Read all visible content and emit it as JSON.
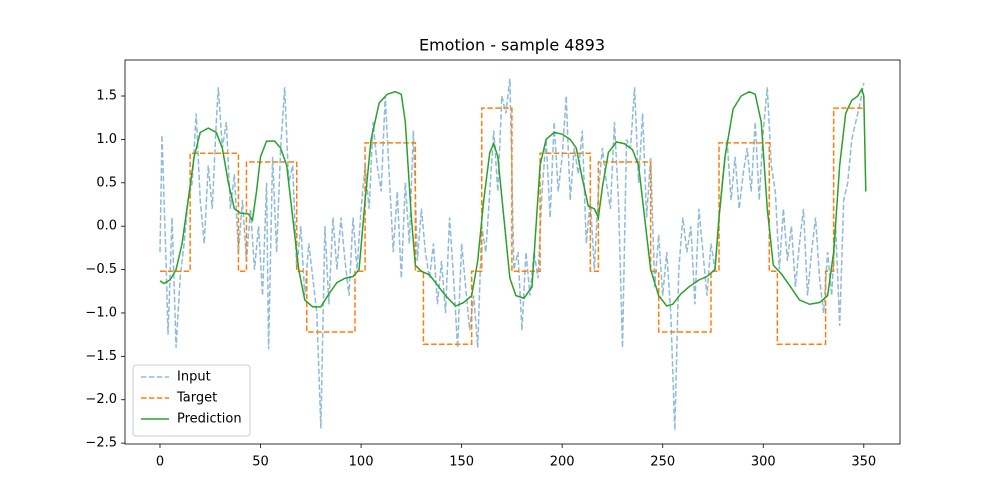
{
  "chart_data": {
    "type": "line",
    "title": "Emotion - sample 4893",
    "xlim": [
      -17.4,
      368
    ],
    "ylim": [
      -2.51,
      1.915
    ],
    "xticks": [
      0,
      50,
      100,
      150,
      200,
      250,
      300,
      350
    ],
    "yticks": [
      {
        "value": -2.5,
        "label": "−2.5"
      },
      {
        "value": -2.0,
        "label": "−2.0"
      },
      {
        "value": -1.5,
        "label": "−1.5"
      },
      {
        "value": -1.0,
        "label": "−1.0"
      },
      {
        "value": -0.5,
        "label": "−0.5"
      },
      {
        "value": 0,
        "label": "0.0"
      },
      0.5,
      {
        "value": 1.0,
        "label": "1.0"
      },
      1.5
    ],
    "legend": "lower left",
    "series": [
      {
        "name": "Input",
        "color": "#1f77b4",
        "alpha": 0.5,
        "linestyle": "dashed",
        "x": [
          0,
          1,
          3,
          4,
          6,
          8,
          10,
          12,
          14,
          16,
          18,
          20,
          22,
          24,
          26,
          28,
          29,
          31,
          33,
          35,
          37,
          39,
          41,
          43,
          45,
          47,
          49,
          51,
          53,
          54,
          56,
          58,
          60,
          62,
          64,
          66,
          68,
          70,
          72,
          74,
          76,
          78,
          80,
          82,
          84,
          86,
          88,
          90,
          92,
          94,
          96,
          98,
          100,
          102,
          104,
          106,
          108,
          110,
          112,
          114,
          116,
          118,
          120,
          122,
          124,
          126,
          128,
          130,
          132,
          134,
          136,
          138,
          140,
          142,
          144,
          146,
          148,
          150,
          152,
          154,
          156,
          158,
          160,
          162,
          164,
          166,
          168,
          170,
          172,
          174,
          176,
          178,
          180,
          182,
          184,
          186,
          188,
          190,
          192,
          194,
          196,
          198,
          200,
          202,
          204,
          206,
          208,
          210,
          212,
          214,
          216,
          218,
          220,
          222,
          224,
          226,
          228,
          230,
          232,
          234,
          236,
          238,
          240,
          242,
          244,
          246,
          248,
          250,
          252,
          254,
          256,
          258,
          260,
          262,
          264,
          266,
          268,
          270,
          272,
          274,
          276,
          278,
          280,
          282,
          284,
          286,
          288,
          290,
          292,
          294,
          296,
          298,
          300,
          302,
          304,
          306,
          308,
          310,
          312,
          314,
          316,
          318,
          320,
          322,
          324,
          326,
          328,
          330,
          332,
          334,
          336,
          338,
          340,
          342,
          344,
          346,
          348,
          350
        ],
        "values": [
          -0.3,
          1.05,
          -0.4,
          -1.25,
          0.1,
          -1.4,
          -0.6,
          -0.2,
          0.3,
          0.5,
          1.3,
          0.3,
          -0.2,
          0.7,
          0.2,
          1.2,
          1.6,
          0.9,
          1.2,
          0.2,
          0.6,
          -0.3,
          0.3,
          -0.4,
          0.2,
          -0.5,
          0.0,
          -0.8,
          0.5,
          -1.42,
          0.8,
          -0.3,
          0.9,
          1.6,
          0.5,
          0.7,
          -0.5,
          0.0,
          -0.8,
          -0.2,
          -0.6,
          -1.0,
          -2.33,
          0.0,
          -0.9,
          0.1,
          -0.5,
          0.1,
          -0.4,
          -0.8,
          0.1,
          -0.5,
          0.2,
          0.7,
          0.2,
          1.2,
          0.7,
          0.4,
          1.5,
          0.6,
          -0.3,
          0.4,
          -0.6,
          0.5,
          -0.2,
          1.1,
          -0.4,
          0.2,
          -0.3,
          -0.6,
          -0.2,
          -0.9,
          -0.4,
          -1.0,
          0.1,
          -0.6,
          -1.4,
          -0.2,
          -0.7,
          -1.2,
          -0.8,
          -1.4,
          0.0,
          -0.3,
          0.4,
          1.1,
          0.4,
          1.5,
          1.3,
          1.7,
          -0.5,
          -0.3,
          -1.2,
          -0.3,
          -0.8,
          -0.3,
          -0.6,
          0.4,
          1.0,
          0.1,
          1.2,
          0.4,
          0.8,
          1.5,
          0.3,
          0.9,
          0.6,
          1.1,
          -0.2,
          0.3,
          -0.5,
          0.4,
          0.9,
          0.5,
          0.2,
          1.2,
          0.3,
          -1.4,
          1.0,
          0.9,
          1.6,
          0.5,
          1.3,
          0.1,
          0.8,
          -0.7,
          -0.1,
          -0.8,
          -0.3,
          -1.0,
          -2.35,
          -0.5,
          0.1,
          -0.3,
          0.0,
          -0.9,
          0.2,
          -0.3,
          -0.8,
          -0.2,
          -0.5,
          0.1,
          0.6,
          1.0,
          0.3,
          0.8,
          0.2,
          0.6,
          0.9,
          0.4,
          1.2,
          0.3,
          1.1,
          1.6,
          0.7,
          0.4,
          -0.5,
          0.2,
          -0.4,
          0.0,
          -0.7,
          -0.2,
          0.2,
          -0.8,
          -0.3,
          0.1,
          -0.6,
          -1.0,
          -0.3,
          -0.8,
          0.0,
          -1.15,
          0.3,
          0.5,
          1.0,
          1.2,
          1.4,
          1.65
        ]
      },
      {
        "name": "Target",
        "color": "#ff7f0e",
        "alpha": 1,
        "linestyle": "dashed",
        "x": [
          0,
          15,
          15,
          39,
          39,
          43,
          43,
          68,
          68,
          73,
          73,
          97,
          97,
          102,
          102,
          127,
          127,
          131,
          131,
          155,
          155,
          160,
          160,
          175,
          175,
          189,
          189,
          214,
          214,
          218,
          218,
          244,
          244,
          248,
          248,
          274,
          274,
          278,
          278,
          303,
          303,
          307,
          307,
          331,
          331,
          335,
          335,
          350
        ],
        "values": [
          -0.52,
          -0.52,
          0.84,
          0.84,
          -0.52,
          -0.52,
          0.74,
          0.74,
          -0.52,
          -0.52,
          -1.22,
          -1.22,
          -0.52,
          -0.52,
          0.96,
          0.96,
          -0.52,
          -0.52,
          -1.36,
          -1.36,
          -0.52,
          -0.52,
          1.36,
          1.36,
          -0.52,
          -0.52,
          0.84,
          0.84,
          -0.52,
          -0.52,
          0.74,
          0.74,
          -0.52,
          -0.52,
          -1.22,
          -1.22,
          -0.52,
          -0.52,
          0.96,
          0.96,
          -0.52,
          -0.52,
          -1.36,
          -1.36,
          -0.52,
          -0.52,
          1.36,
          1.36
        ]
      },
      {
        "name": "Prediction",
        "color": "#2ca02c",
        "alpha": 1,
        "linestyle": "solid",
        "x": [
          0,
          2,
          5,
          8,
          11,
          14,
          17,
          20,
          24,
          28,
          31,
          34,
          37,
          40,
          44,
          46,
          48,
          50,
          53,
          57,
          60,
          63,
          66,
          69,
          72,
          76,
          80,
          84,
          88,
          92,
          96,
          99,
          102,
          105,
          109,
          113,
          117,
          120,
          122,
          125,
          127,
          130,
          134,
          138,
          142,
          147,
          151,
          155,
          158,
          161,
          164,
          166,
          168,
          171,
          174,
          177,
          181,
          185,
          187,
          189,
          192,
          196,
          200,
          204,
          207,
          210,
          213,
          216,
          218,
          220,
          223,
          227,
          231,
          235,
          238,
          241,
          244,
          248,
          252,
          255,
          259,
          263,
          268,
          272,
          276,
          278,
          281,
          285,
          289,
          293,
          296,
          299,
          302,
          305,
          309,
          313,
          318,
          323,
          328,
          332,
          335,
          338,
          341,
          344,
          347,
          349,
          350,
          351
        ],
        "values": [
          -0.63,
          -0.66,
          -0.62,
          -0.5,
          -0.2,
          0.3,
          0.8,
          1.08,
          1.13,
          1.08,
          0.9,
          0.5,
          0.2,
          0.15,
          0.14,
          0.07,
          0.4,
          0.8,
          0.98,
          0.98,
          0.9,
          0.7,
          0.1,
          -0.5,
          -0.85,
          -0.93,
          -0.93,
          -0.78,
          -0.65,
          -0.6,
          -0.58,
          -0.5,
          0.3,
          1.0,
          1.42,
          1.52,
          1.55,
          1.52,
          1.2,
          0.1,
          -0.45,
          -0.52,
          -0.56,
          -0.68,
          -0.8,
          -0.92,
          -0.88,
          -0.8,
          -0.4,
          0.3,
          0.85,
          0.95,
          0.8,
          0.1,
          -0.6,
          -0.8,
          -0.83,
          -0.7,
          0.0,
          0.7,
          1.0,
          1.08,
          1.06,
          1.0,
          0.9,
          0.55,
          0.23,
          0.2,
          0.1,
          0.45,
          0.85,
          0.97,
          0.95,
          0.88,
          0.7,
          0.1,
          -0.5,
          -0.8,
          -0.92,
          -0.9,
          -0.78,
          -0.7,
          -0.62,
          -0.58,
          -0.5,
          0.1,
          0.8,
          1.35,
          1.5,
          1.55,
          1.52,
          1.2,
          0.2,
          -0.45,
          -0.55,
          -0.68,
          -0.85,
          -0.9,
          -0.88,
          -0.8,
          -0.3,
          0.7,
          1.3,
          1.45,
          1.5,
          1.58,
          1.5,
          0.4
        ]
      }
    ]
  }
}
